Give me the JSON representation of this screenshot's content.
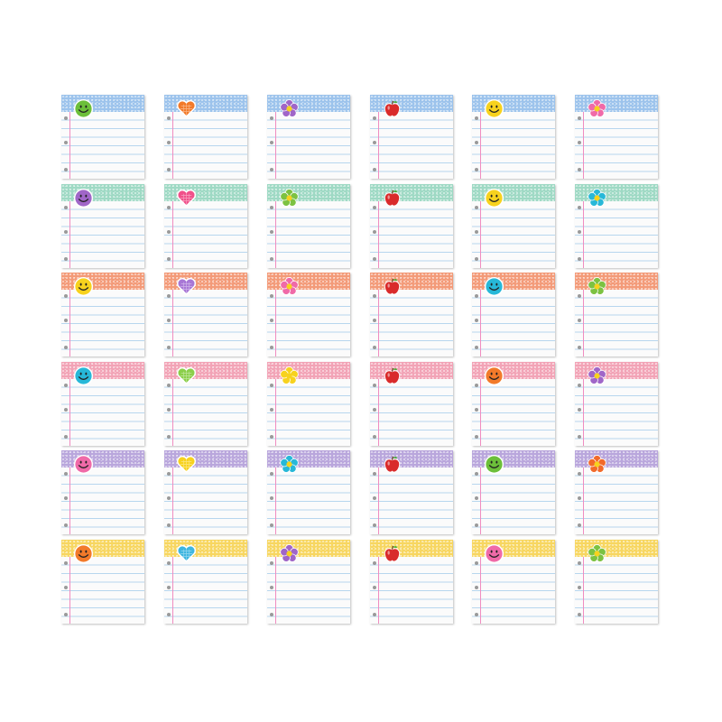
{
  "rows": [
    {
      "band_color": "#9cc3ec"
    },
    {
      "band_color": "#9ed9c4"
    },
    {
      "band_color": "#f39a78"
    },
    {
      "band_color": "#f2a3b6"
    },
    {
      "band_color": "#b9a6dc"
    },
    {
      "band_color": "#f7d660"
    }
  ],
  "columns": [
    {
      "icon": "smiley-icon"
    },
    {
      "icon": "heart-icon"
    },
    {
      "icon": "flower-icon"
    },
    {
      "icon": "apple-icon"
    },
    {
      "icon": "smiley-icon"
    },
    {
      "icon": "flower-icon"
    }
  ],
  "icon_colors": [
    [
      "#6cbf3a",
      "#f27a2a",
      "#a066c8",
      "#d92b2b",
      "#f7d21e",
      "#f06aa8"
    ],
    [
      "#a066c8",
      "#f0508a",
      "#7cc242",
      "#d92b2b",
      "#f7d21e",
      "#27b8d8"
    ],
    [
      "#f7d21e",
      "#a877d6",
      "#f06aa8",
      "#d92b2b",
      "#27b8d8",
      "#7cc242"
    ],
    [
      "#27b8d8",
      "#8bcf4a",
      "#f7d21e",
      "#d92b2b",
      "#f27a2a",
      "#a066c8"
    ],
    [
      "#f06aa8",
      "#f7d21e",
      "#27b8d8",
      "#d92b2b",
      "#6cbf3a",
      "#f26a2a"
    ],
    [
      "#f27a2a",
      "#3fb6e0",
      "#a066c8",
      "#d92b2b",
      "#f06aa8",
      "#7cc242"
    ]
  ]
}
